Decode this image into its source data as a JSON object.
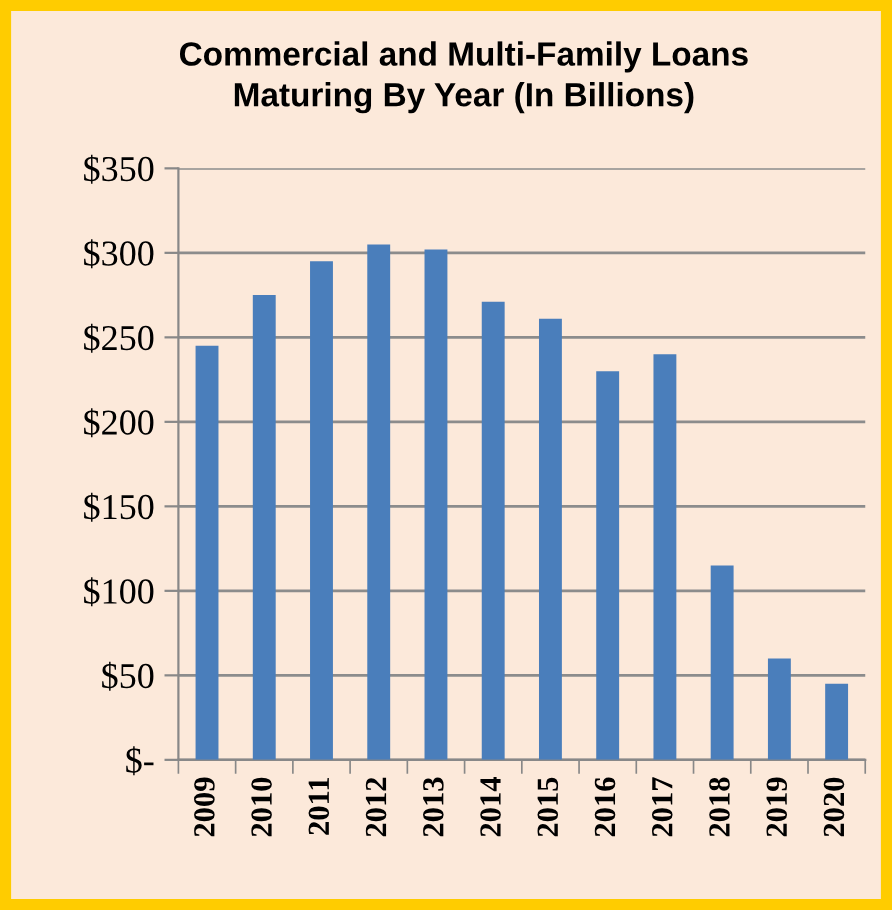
{
  "chart_data": {
    "type": "bar",
    "title": "Commercial and Multi-Family Loans\nMaturing By Year (In Billions)",
    "categories": [
      "2009",
      "2010",
      "2011",
      "2012",
      "2013",
      "2014",
      "2015",
      "2016",
      "2017",
      "2018",
      "2019",
      "2020"
    ],
    "values": [
      245,
      275,
      295,
      305,
      302,
      271,
      261,
      230,
      240,
      115,
      60,
      45
    ],
    "color": "#4a7ebb",
    "ylim": [
      0,
      350
    ],
    "yticks": [
      {
        "value": 0,
        "label": "$-"
      },
      {
        "value": 50,
        "label": "$50"
      },
      {
        "value": 100,
        "label": "$100"
      },
      {
        "value": 150,
        "label": "$150"
      },
      {
        "value": 200,
        "label": "$200"
      },
      {
        "value": 250,
        "label": "$250"
      },
      {
        "value": 300,
        "label": "$300"
      },
      {
        "value": 350,
        "label": "$350"
      }
    ],
    "grid": "y"
  }
}
